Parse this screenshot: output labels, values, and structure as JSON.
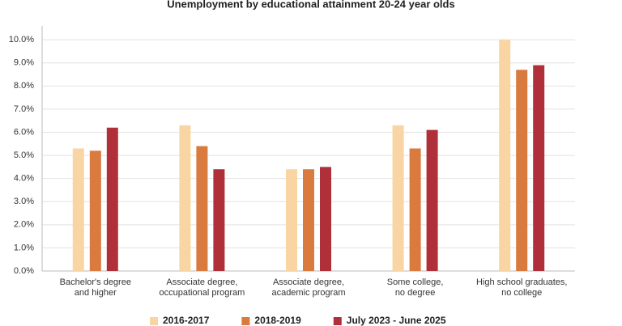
{
  "chart_data": {
    "type": "bar",
    "title": "Unemployment by educational attainment 20-24 year olds",
    "categories": [
      [
        "Bachelor's degree",
        "and higher"
      ],
      [
        "Associate degree,",
        "occupational program"
      ],
      [
        "Associate degree,",
        "academic program"
      ],
      [
        "Some college,",
        "no degree"
      ],
      [
        "High school graduates,",
        "no college"
      ]
    ],
    "series": [
      {
        "name": "2016-2017",
        "color": "#f8d5a3",
        "values": [
          5.3,
          6.3,
          4.4,
          6.3,
          10.0
        ]
      },
      {
        "name": "2018-2019",
        "color": "#d97a3e",
        "values": [
          5.2,
          5.4,
          4.4,
          5.3,
          8.7
        ]
      },
      {
        "name": "July 2023 - June 2025",
        "color": "#b0303a",
        "values": [
          6.2,
          4.4,
          4.5,
          6.1,
          8.9
        ]
      }
    ],
    "ylim": [
      0,
      10.6
    ],
    "yticks": [
      {
        "value": 0,
        "label": "0.0%"
      },
      {
        "value": 1,
        "label": "1.0%"
      },
      {
        "value": 2,
        "label": "2.0%"
      },
      {
        "value": 3,
        "label": "3.0%"
      },
      {
        "value": 4,
        "label": "4.0%"
      },
      {
        "value": 5,
        "label": "5.0%"
      },
      {
        "value": 6,
        "label": "6.0%"
      },
      {
        "value": 7,
        "label": "7.0%"
      },
      {
        "value": 8,
        "label": "8.0%"
      },
      {
        "value": 9,
        "label": "9.0%"
      },
      {
        "value": 10,
        "label": "10.0%"
      }
    ],
    "grid": true,
    "legend": "bottom"
  }
}
